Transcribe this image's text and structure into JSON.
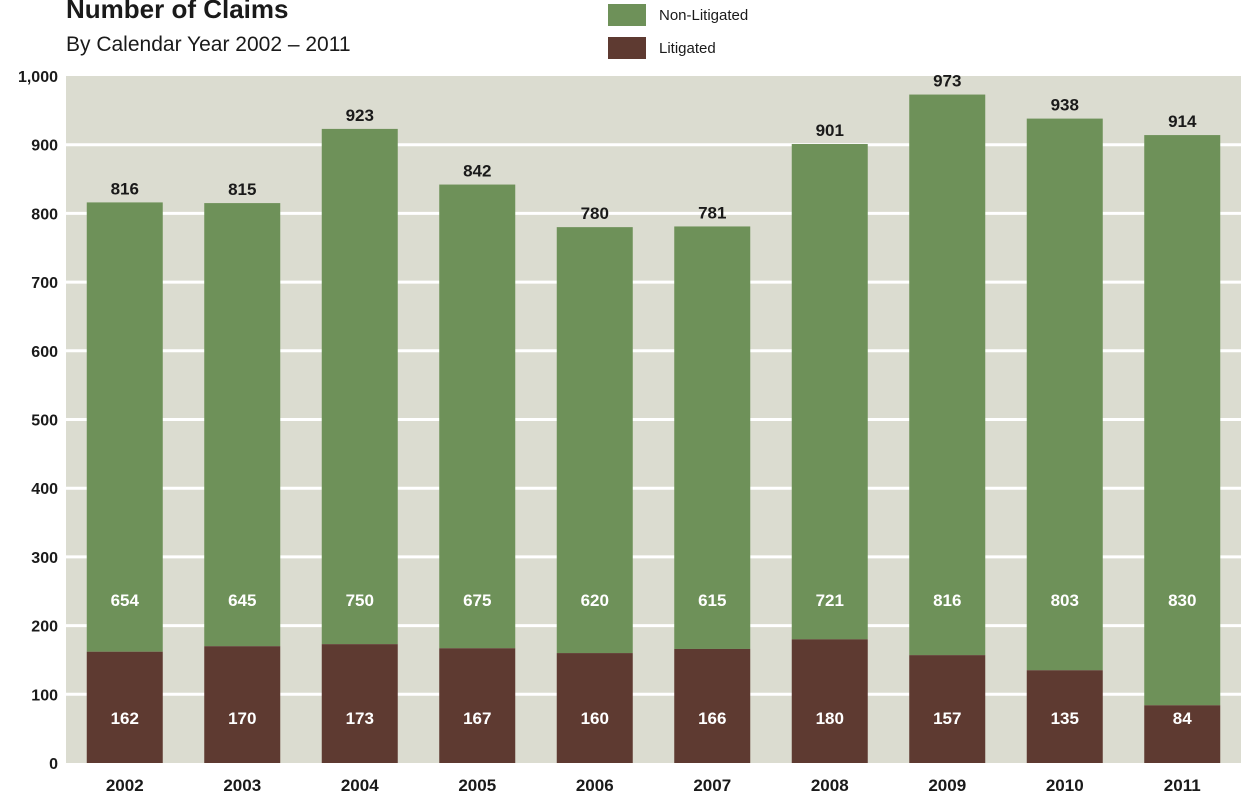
{
  "chart_data": {
    "type": "bar",
    "stacked": true,
    "title": "Number of Claims",
    "subtitle": "By Calendar Year 2002 – 2011",
    "categories": [
      "2002",
      "2003",
      "2004",
      "2005",
      "2006",
      "2007",
      "2008",
      "2009",
      "2010",
      "2011"
    ],
    "series": [
      {
        "name": "Litigated",
        "color": "#5e3a31",
        "values": [
          162,
          170,
          173,
          167,
          160,
          166,
          180,
          157,
          135,
          84
        ]
      },
      {
        "name": "Non-Litigated",
        "color": "#6e9159",
        "values": [
          654,
          645,
          750,
          675,
          620,
          615,
          721,
          816,
          803,
          830
        ]
      }
    ],
    "totals": [
      816,
      815,
      923,
      842,
      780,
      781,
      901,
      973,
      938,
      914
    ],
    "ylim": [
      0,
      1000
    ],
    "yticks": [
      "0",
      "100",
      "200",
      "300",
      "400",
      "500",
      "600",
      "700",
      "800",
      "900",
      "1,000"
    ],
    "grid": true,
    "plot_background": "#dbdcd0",
    "legend_position": "top-center",
    "xlabel": "",
    "ylabel": ""
  }
}
